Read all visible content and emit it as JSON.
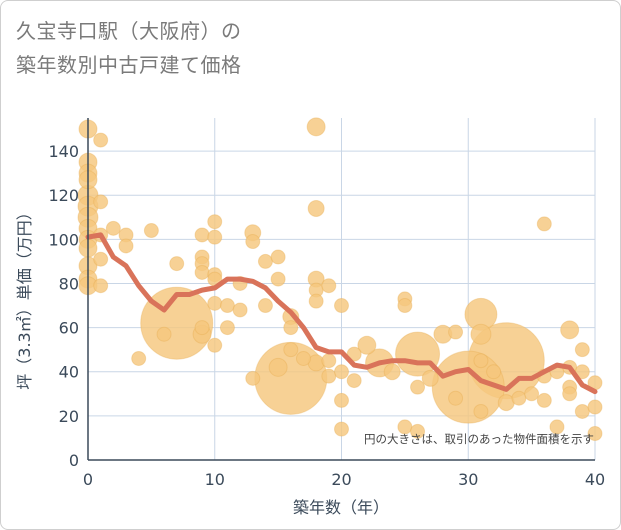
{
  "title": {
    "line1": "久宝寺口駅（大阪府）の",
    "line2": "築年数別中古戸建て価格"
  },
  "note": "円の大きさは、取引のあった物件面積を示す",
  "colors": {
    "bubble": "#f5c77e",
    "bubble_stroke": "#e6a84a",
    "line": "#d9735a",
    "grid": "#c9d6e6",
    "axis": "#3b4a5a"
  },
  "chart_data": {
    "type": "scatter",
    "title": "久宝寺口駅（大阪府）の築年数別中古戸建て価格",
    "xlabel": "築年数（年）",
    "ylabel": "坪（3.3㎡）単価（万円）",
    "xlim": [
      0,
      40
    ],
    "ylim": [
      0,
      155
    ],
    "xticks": [
      0,
      10,
      20,
      30,
      40
    ],
    "yticks": [
      0,
      20,
      40,
      60,
      80,
      100,
      120,
      140
    ],
    "grid": true,
    "points": [
      {
        "x": 0,
        "y": 150,
        "s": 9
      },
      {
        "x": 0,
        "y": 135,
        "s": 9
      },
      {
        "x": 0,
        "y": 130,
        "s": 9
      },
      {
        "x": 0,
        "y": 127,
        "s": 9
      },
      {
        "x": 0,
        "y": 120,
        "s": 10
      },
      {
        "x": 0,
        "y": 115,
        "s": 10
      },
      {
        "x": 0,
        "y": 110,
        "s": 10
      },
      {
        "x": 0,
        "y": 105,
        "s": 9
      },
      {
        "x": 0,
        "y": 100,
        "s": 9
      },
      {
        "x": 0,
        "y": 96,
        "s": 9
      },
      {
        "x": 0,
        "y": 88,
        "s": 9
      },
      {
        "x": 0,
        "y": 82,
        "s": 9
      },
      {
        "x": 0,
        "y": 79,
        "s": 9
      },
      {
        "x": 1,
        "y": 145,
        "s": 7
      },
      {
        "x": 1,
        "y": 117,
        "s": 7
      },
      {
        "x": 1,
        "y": 102,
        "s": 7
      },
      {
        "x": 1,
        "y": 91,
        "s": 7
      },
      {
        "x": 1,
        "y": 79,
        "s": 7
      },
      {
        "x": 2,
        "y": 105,
        "s": 7
      },
      {
        "x": 3,
        "y": 102,
        "s": 7
      },
      {
        "x": 3,
        "y": 97,
        "s": 7
      },
      {
        "x": 4,
        "y": 46,
        "s": 7
      },
      {
        "x": 5,
        "y": 104,
        "s": 7
      },
      {
        "x": 6,
        "y": 57,
        "s": 7
      },
      {
        "x": 7,
        "y": 62,
        "s": 36
      },
      {
        "x": 7,
        "y": 89,
        "s": 7
      },
      {
        "x": 9,
        "y": 102,
        "s": 7
      },
      {
        "x": 9,
        "y": 92,
        "s": 7
      },
      {
        "x": 9,
        "y": 89,
        "s": 7
      },
      {
        "x": 9,
        "y": 85,
        "s": 7
      },
      {
        "x": 9,
        "y": 60,
        "s": 7
      },
      {
        "x": 9,
        "y": 57,
        "s": 9
      },
      {
        "x": 10,
        "y": 108,
        "s": 7
      },
      {
        "x": 10,
        "y": 101,
        "s": 7
      },
      {
        "x": 10,
        "y": 84,
        "s": 7
      },
      {
        "x": 10,
        "y": 82,
        "s": 7
      },
      {
        "x": 10,
        "y": 71,
        "s": 7
      },
      {
        "x": 10,
        "y": 52,
        "s": 7
      },
      {
        "x": 11,
        "y": 70,
        "s": 7
      },
      {
        "x": 11,
        "y": 60,
        "s": 7
      },
      {
        "x": 12,
        "y": 80,
        "s": 7
      },
      {
        "x": 12,
        "y": 68,
        "s": 7
      },
      {
        "x": 13,
        "y": 103,
        "s": 8
      },
      {
        "x": 13,
        "y": 99,
        "s": 7
      },
      {
        "x": 13,
        "y": 37,
        "s": 7
      },
      {
        "x": 14,
        "y": 90,
        "s": 7
      },
      {
        "x": 14,
        "y": 70,
        "s": 7
      },
      {
        "x": 15,
        "y": 92,
        "s": 7
      },
      {
        "x": 15,
        "y": 82,
        "s": 7
      },
      {
        "x": 15,
        "y": 42,
        "s": 9
      },
      {
        "x": 16,
        "y": 37,
        "s": 36
      },
      {
        "x": 16,
        "y": 60,
        "s": 7
      },
      {
        "x": 16,
        "y": 65,
        "s": 8
      },
      {
        "x": 16,
        "y": 50,
        "s": 7
      },
      {
        "x": 17,
        "y": 46,
        "s": 7
      },
      {
        "x": 18,
        "y": 151,
        "s": 9
      },
      {
        "x": 18,
        "y": 114,
        "s": 8
      },
      {
        "x": 18,
        "y": 82,
        "s": 8
      },
      {
        "x": 18,
        "y": 77,
        "s": 7
      },
      {
        "x": 18,
        "y": 72,
        "s": 7
      },
      {
        "x": 18,
        "y": 44,
        "s": 8
      },
      {
        "x": 19,
        "y": 79,
        "s": 7
      },
      {
        "x": 19,
        "y": 45,
        "s": 7
      },
      {
        "x": 19,
        "y": 38,
        "s": 7
      },
      {
        "x": 20,
        "y": 70,
        "s": 7
      },
      {
        "x": 20,
        "y": 40,
        "s": 7
      },
      {
        "x": 20,
        "y": 27,
        "s": 7
      },
      {
        "x": 20,
        "y": 14,
        "s": 7
      },
      {
        "x": 21,
        "y": 48,
        "s": 7
      },
      {
        "x": 21,
        "y": 36,
        "s": 7
      },
      {
        "x": 22,
        "y": 52,
        "s": 9
      },
      {
        "x": 23,
        "y": 44,
        "s": 14
      },
      {
        "x": 24,
        "y": 40,
        "s": 8
      },
      {
        "x": 25,
        "y": 73,
        "s": 7
      },
      {
        "x": 25,
        "y": 70,
        "s": 7
      },
      {
        "x": 25,
        "y": 15,
        "s": 7
      },
      {
        "x": 26,
        "y": 48,
        "s": 22
      },
      {
        "x": 26,
        "y": 33,
        "s": 7
      },
      {
        "x": 26,
        "y": 13,
        "s": 7
      },
      {
        "x": 27,
        "y": 37,
        "s": 8
      },
      {
        "x": 28,
        "y": 57,
        "s": 9
      },
      {
        "x": 29,
        "y": 28,
        "s": 7
      },
      {
        "x": 29,
        "y": 58,
        "s": 7
      },
      {
        "x": 30,
        "y": 33,
        "s": 36
      },
      {
        "x": 31,
        "y": 66,
        "s": 16
      },
      {
        "x": 31,
        "y": 57,
        "s": 10
      },
      {
        "x": 31,
        "y": 45,
        "s": 7
      },
      {
        "x": 31,
        "y": 22,
        "s": 7
      },
      {
        "x": 32,
        "y": 40,
        "s": 7
      },
      {
        "x": 33,
        "y": 45,
        "s": 38
      },
      {
        "x": 33,
        "y": 26,
        "s": 8
      },
      {
        "x": 34,
        "y": 28,
        "s": 7
      },
      {
        "x": 35,
        "y": 30,
        "s": 7
      },
      {
        "x": 36,
        "y": 107,
        "s": 7
      },
      {
        "x": 36,
        "y": 38,
        "s": 7
      },
      {
        "x": 36,
        "y": 27,
        "s": 7
      },
      {
        "x": 37,
        "y": 40,
        "s": 7
      },
      {
        "x": 37,
        "y": 15,
        "s": 7
      },
      {
        "x": 38,
        "y": 59,
        "s": 9
      },
      {
        "x": 38,
        "y": 42,
        "s": 7
      },
      {
        "x": 38,
        "y": 33,
        "s": 7
      },
      {
        "x": 38,
        "y": 30,
        "s": 7
      },
      {
        "x": 39,
        "y": 50,
        "s": 7
      },
      {
        "x": 39,
        "y": 40,
        "s": 7
      },
      {
        "x": 39,
        "y": 22,
        "s": 7
      },
      {
        "x": 40,
        "y": 35,
        "s": 7
      },
      {
        "x": 40,
        "y": 24,
        "s": 7
      },
      {
        "x": 40,
        "y": 12,
        "s": 7
      }
    ],
    "trend": {
      "x": [
        0,
        1,
        2,
        3,
        4,
        5,
        6,
        7,
        8,
        9,
        10,
        11,
        12,
        13,
        14,
        15,
        16,
        17,
        18,
        19,
        20,
        21,
        22,
        23,
        24,
        25,
        26,
        27,
        28,
        29,
        30,
        31,
        32,
        33,
        34,
        35,
        36,
        37,
        38,
        39,
        40
      ],
      "y": [
        101,
        102,
        92,
        88,
        79,
        72,
        68,
        75,
        75,
        77,
        78,
        82,
        82,
        81,
        78,
        72,
        67,
        60,
        51,
        49,
        49,
        43,
        42,
        44,
        45,
        45,
        44,
        44,
        38,
        40,
        41,
        36,
        34,
        32,
        37,
        37,
        40,
        43,
        42,
        34,
        31
      ]
    }
  }
}
